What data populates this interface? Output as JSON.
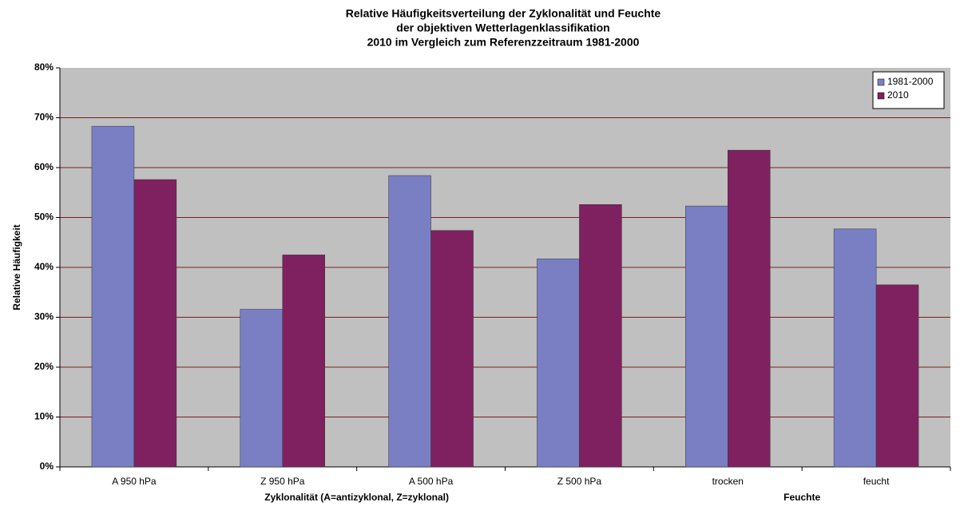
{
  "chart_data": {
    "type": "bar",
    "title": [
      "Relative Häufigkeitsverteilung der Zyklonalität und Feuchte",
      "der objektiven Wetterlagenklassifikation",
      "2010 im Vergleich zum Referenzzeitraum 1981-2000"
    ],
    "ylabel": "Relative Häufigkeit",
    "xlabel": [
      "Zyklonalität (A=antizyklonal, Z=zyklonal)",
      "Feuchte"
    ],
    "categories": [
      "A 950 hPa",
      "Z 950 hPa",
      "A 500 hPa",
      "Z 500 hPa",
      "trocken",
      "feucht"
    ],
    "series": [
      {
        "name": "1981-2000",
        "color": "#7a7fc4",
        "values": [
          68.3,
          31.6,
          58.4,
          41.7,
          52.3,
          47.7
        ]
      },
      {
        "name": "2010",
        "color": "#7f2160",
        "values": [
          57.6,
          42.5,
          47.4,
          52.6,
          63.5,
          36.5
        ]
      }
    ],
    "ylim": [
      0,
      80
    ],
    "yticks": [
      {
        "value": 0,
        "label": "0%"
      },
      {
        "value": 10,
        "label": "10%"
      },
      {
        "value": 20,
        "label": "20%"
      },
      {
        "value": 30,
        "label": "30%"
      },
      {
        "value": 40,
        "label": "40%"
      },
      {
        "value": 50,
        "label": "50%"
      },
      {
        "value": 60,
        "label": "60%"
      },
      {
        "value": 70,
        "label": "70%"
      },
      {
        "value": 80,
        "label": "80%"
      }
    ],
    "grid": true,
    "legend": "top-right"
  }
}
